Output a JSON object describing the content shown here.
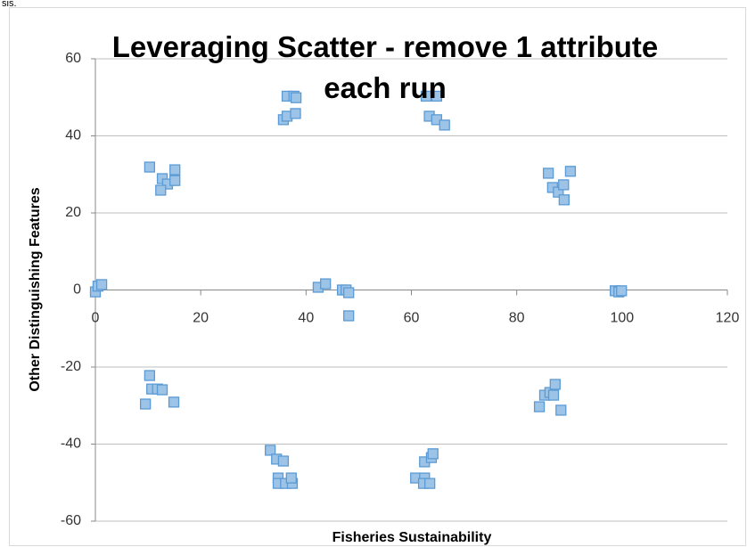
{
  "caption_fragment": "sis.",
  "chart_data": {
    "type": "scatter",
    "title": "Leveraging Scatter - remove 1 attribute each run",
    "x_label": "Fisheries Sustainability",
    "y_label": "Other Distinguishing Features",
    "xlim": [
      0,
      120
    ],
    "xticks": [
      0,
      20,
      40,
      60,
      80,
      100,
      120
    ],
    "ylim": [
      -60,
      60
    ],
    "yticks": [
      -60,
      -40,
      -20,
      0,
      20,
      40,
      60
    ],
    "grid": true,
    "series": [
      {
        "color": "#9dc3e6",
        "edgecolor": "#5b9bd5",
        "x": [
          0,
          0.5,
          1.2,
          10.3,
          15.1,
          12.7,
          13.7,
          15.1,
          12.4,
          36.4,
          37.7,
          38.1,
          35.7,
          36.4,
          38,
          62.8,
          64.8,
          63.4,
          64.8,
          66.3,
          86,
          90.2,
          86.8,
          87.9,
          88.9,
          89,
          42.3,
          43.7,
          46.9,
          47.6,
          48.1,
          48.1,
          98.7,
          99.4,
          99.9,
          10.3,
          10.7,
          11.8,
          12.7,
          9.5,
          14.9,
          33.2,
          34.4,
          35.7,
          34.7,
          34.7,
          36.1,
          37.4,
          37.2,
          60.8,
          62.5,
          62.5,
          63.8,
          64.1,
          62.3,
          63.5,
          84.3,
          85.3,
          86.3,
          87,
          87.3,
          88.4
        ],
        "values": [
          -0.5,
          1,
          1.4,
          31.9,
          31.2,
          28.9,
          27.5,
          28.4,
          25.9,
          50.3,
          50.3,
          49.9,
          44.2,
          45.1,
          45.8,
          50.3,
          50.3,
          45.1,
          44.2,
          42.8,
          30.3,
          30.8,
          26.6,
          25.4,
          27.3,
          23.4,
          0.7,
          1.6,
          0,
          0,
          -0.7,
          -6.7,
          -0.2,
          -0.5,
          -0.2,
          -22.2,
          -25.7,
          -25.7,
          -25.9,
          -29.6,
          -29.1,
          -41.6,
          -43.9,
          -44.4,
          -48.8,
          -50.2,
          -50.2,
          -50.2,
          -48.8,
          -48.8,
          -48.8,
          -44.6,
          -43.5,
          -42.5,
          -50.2,
          -50.2,
          -30.3,
          -27.3,
          -26.6,
          -27.3,
          -24.5,
          -31.2
        ]
      }
    ]
  }
}
